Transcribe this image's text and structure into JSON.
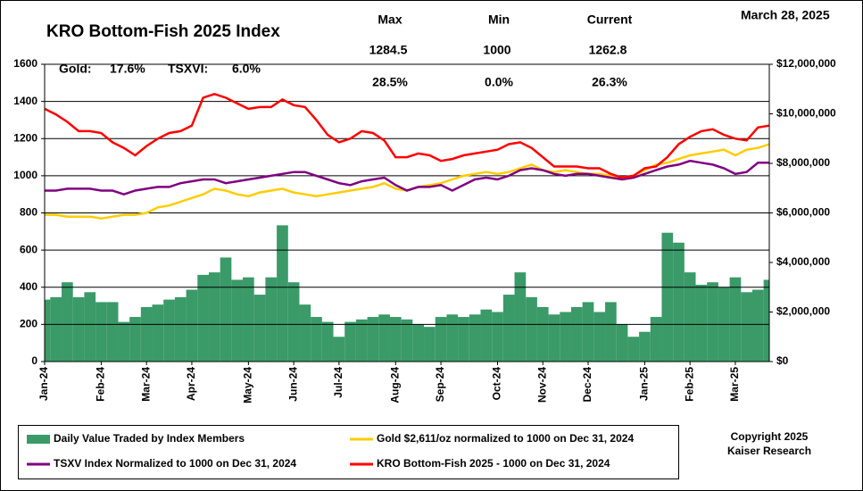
{
  "chart_data": {
    "type": "combo",
    "title": "KRO Bottom-Fish 2025 Index",
    "date": "March 28, 2025",
    "stats": {
      "headers": [
        "Max",
        "Min",
        "Current"
      ],
      "values": [
        1284.5,
        1000,
        1262.8
      ],
      "pct": [
        "28.5%",
        "0.0%",
        "26.3%"
      ]
    },
    "annotations": [
      "Gold:",
      "17.6%",
      "TSXVI:",
      "6.0%"
    ],
    "copyright": [
      "Copyright 2025",
      "Kaiser Research"
    ],
    "categories": [
      "Jan-24",
      null,
      null,
      null,
      null,
      "Feb-24",
      null,
      null,
      null,
      "Mar-24",
      null,
      null,
      null,
      "Apr-24",
      null,
      null,
      null,
      null,
      "May-24",
      null,
      null,
      null,
      "Jun-24",
      null,
      null,
      null,
      "Jul-24",
      null,
      null,
      null,
      null,
      "Aug-24",
      null,
      null,
      null,
      "Sep-24",
      null,
      null,
      null,
      null,
      "Oct-24",
      null,
      null,
      null,
      "Nov-24",
      null,
      null,
      null,
      "Dec-24",
      null,
      null,
      null,
      null,
      "Jan-25",
      null,
      null,
      null,
      "Feb-25",
      null,
      null,
      null,
      "Mar-25",
      null,
      null,
      null
    ],
    "series": [
      {
        "name": "Daily Value Traded by Index Members",
        "color": "#3a9a68",
        "axis": "y2",
        "kind": "bar",
        "values": [
          2500000,
          2600000,
          3200000,
          2600000,
          2800000,
          2400000,
          2400000,
          1600000,
          1800000,
          2200000,
          2300000,
          2500000,
          2600000,
          2900000,
          3500000,
          3600000,
          4200000,
          3300000,
          3400000,
          2700000,
          3400000,
          5500000,
          3200000,
          2300000,
          1800000,
          1600000,
          1000000,
          1600000,
          1700000,
          1800000,
          1900000,
          1800000,
          1700000,
          1500000,
          1400000,
          1800000,
          1900000,
          1800000,
          1900000,
          2100000,
          2000000,
          2700000,
          3600000,
          2600000,
          2200000,
          1900000,
          2000000,
          2200000,
          2400000,
          2000000,
          2400000,
          1500000,
          1000000,
          1200000,
          1800000,
          5200000,
          4800000,
          3600000,
          3100000,
          3200000,
          3000000,
          3400000,
          2800000,
          2900000,
          3300000
        ]
      },
      {
        "name": "Gold $2,611/oz normalized to 1000 on Dec 31, 2024",
        "color": "#ffcc00",
        "kind": "line",
        "values": [
          790,
          790,
          780,
          780,
          780,
          770,
          780,
          790,
          790,
          800,
          830,
          840,
          860,
          880,
          900,
          930,
          920,
          900,
          890,
          910,
          920,
          930,
          910,
          900,
          890,
          900,
          910,
          920,
          930,
          940,
          960,
          930,
          920,
          940,
          950,
          960,
          980,
          1000,
          1010,
          1020,
          1010,
          1020,
          1040,
          1060,
          1030,
          1020,
          1030,
          1020,
          1010,
          1010,
          1000,
          990,
          1000,
          1030,
          1060,
          1070,
          1090,
          1110,
          1120,
          1130,
          1140,
          1110,
          1140,
          1150,
          1170
        ]
      },
      {
        "name": "TSXV Index Normalized to 1000 on Dec 31, 2024",
        "color": "#800080",
        "kind": "line",
        "values": [
          920,
          920,
          930,
          930,
          930,
          920,
          920,
          900,
          920,
          930,
          940,
          940,
          960,
          970,
          980,
          980,
          960,
          970,
          980,
          990,
          1000,
          1010,
          1020,
          1020,
          1000,
          980,
          960,
          950,
          970,
          980,
          990,
          950,
          920,
          940,
          940,
          950,
          920,
          950,
          980,
          990,
          980,
          1000,
          1030,
          1040,
          1030,
          1010,
          1000,
          1010,
          1010,
          1000,
          990,
          980,
          990,
          1010,
          1030,
          1050,
          1060,
          1080,
          1070,
          1060,
          1040,
          1010,
          1020,
          1070,
          1070
        ]
      },
      {
        "name": "KRO Bottom-Fish 2025 - 1000 on Dec 31, 2024",
        "color": "#ff0000",
        "kind": "line",
        "values": [
          1360,
          1330,
          1290,
          1240,
          1240,
          1230,
          1180,
          1150,
          1110,
          1160,
          1200,
          1230,
          1240,
          1270,
          1420,
          1440,
          1420,
          1390,
          1360,
          1370,
          1370,
          1410,
          1380,
          1370,
          1300,
          1220,
          1180,
          1200,
          1240,
          1230,
          1190,
          1100,
          1100,
          1120,
          1110,
          1080,
          1090,
          1110,
          1120,
          1130,
          1140,
          1170,
          1180,
          1150,
          1100,
          1050,
          1050,
          1050,
          1040,
          1040,
          1010,
          990,
          1000,
          1040,
          1050,
          1100,
          1170,
          1210,
          1240,
          1250,
          1220,
          1200,
          1190,
          1260,
          1270
        ]
      }
    ],
    "ylim": [
      0,
      1600
    ],
    "yticks": [
      0,
      200,
      400,
      600,
      800,
      1000,
      1200,
      1400,
      1600
    ],
    "y2lim": [
      0,
      12000000
    ],
    "y2ticks": [
      {
        "value": 0,
        "label": "$0"
      },
      {
        "value": 2000000,
        "label": "$2,000,000"
      },
      {
        "value": 4000000,
        "label": "$4,000,000"
      },
      {
        "value": 6000000,
        "label": "$6,000,000"
      },
      {
        "value": 8000000,
        "label": "$8,000,000"
      },
      {
        "value": 10000000,
        "label": "$10,000,000"
      },
      {
        "value": 12000000,
        "label": "$12,000,000"
      }
    ],
    "grid": true
  }
}
